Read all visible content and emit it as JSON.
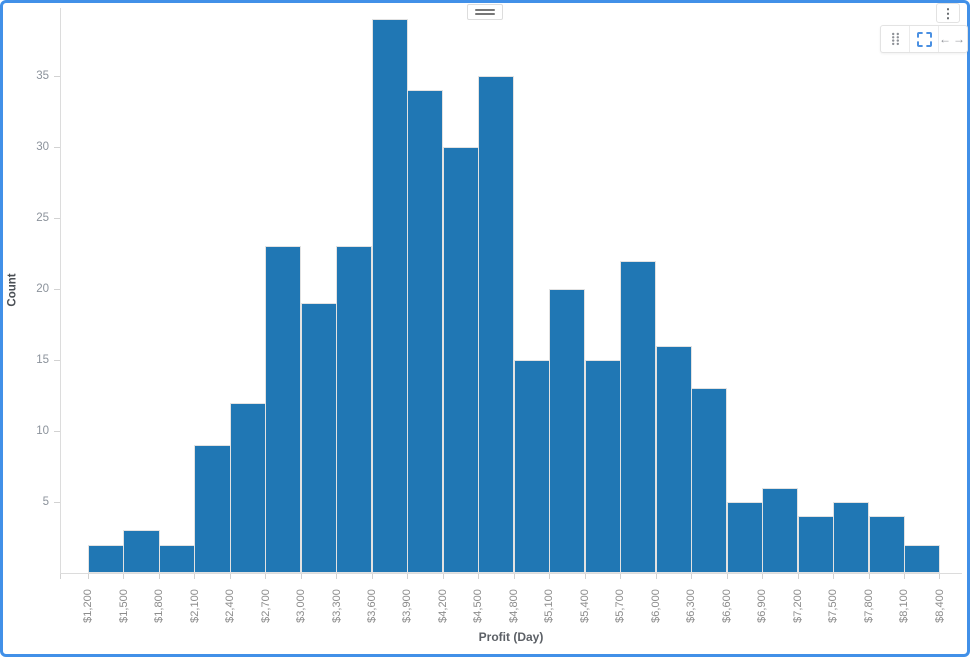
{
  "widget": {
    "frame_color": "#4190e8",
    "drag_handle": {
      "icon": "drag-handle-lines"
    },
    "menu": {
      "icon": "kebab-vertical",
      "glyph": "⋮"
    },
    "toolbar": {
      "items": [
        {
          "name": "drag-dots",
          "icon": "dots-grid-icon"
        },
        {
          "name": "marquee-select",
          "icon": "dashed-square-icon",
          "active": true,
          "accent": "#4a90e2"
        },
        {
          "name": "pan-horizontal",
          "icon": "left-right-arrows-icon",
          "left_glyph": "←",
          "right_glyph": "→"
        }
      ]
    }
  },
  "chart_data": {
    "type": "bar",
    "subtype": "histogram",
    "title": "",
    "xlabel": "Profit (Day)",
    "ylabel": "Count",
    "bin_edges": [
      1200,
      1500,
      1800,
      2100,
      2400,
      2700,
      3000,
      3300,
      3600,
      3900,
      4200,
      4500,
      4800,
      5100,
      5400,
      5700,
      6000,
      6300,
      6600,
      6900,
      7200,
      7500,
      7800,
      8100,
      8400
    ],
    "bin_labels": [
      "$1,200",
      "$1,500",
      "$1,800",
      "$2,100",
      "$2,400",
      "$2,700",
      "$3,000",
      "$3,300",
      "$3,600",
      "$3,900",
      "$4,200",
      "$4,500",
      "$4,800",
      "$5,100",
      "$5,400",
      "$5,700",
      "$6,000",
      "$6,300",
      "$6,600",
      "$6,900",
      "$7,200",
      "$7,500",
      "$7,800",
      "$8,100",
      "$8,400"
    ],
    "values": [
      2,
      3,
      2,
      9,
      12,
      23,
      19,
      23,
      39,
      34,
      30,
      35,
      15,
      20,
      15,
      22,
      16,
      13,
      5,
      6,
      4,
      5,
      4,
      2
    ],
    "yticks": [
      5,
      10,
      15,
      20,
      25,
      30,
      35
    ],
    "ylim": [
      0,
      40
    ],
    "bar_color": "#2077b4",
    "bar_border_color": "#e2e2e2",
    "axis_color": "#dcdcdc",
    "tick_label_color": "#8c8c8c",
    "grid": false,
    "legend": false
  }
}
